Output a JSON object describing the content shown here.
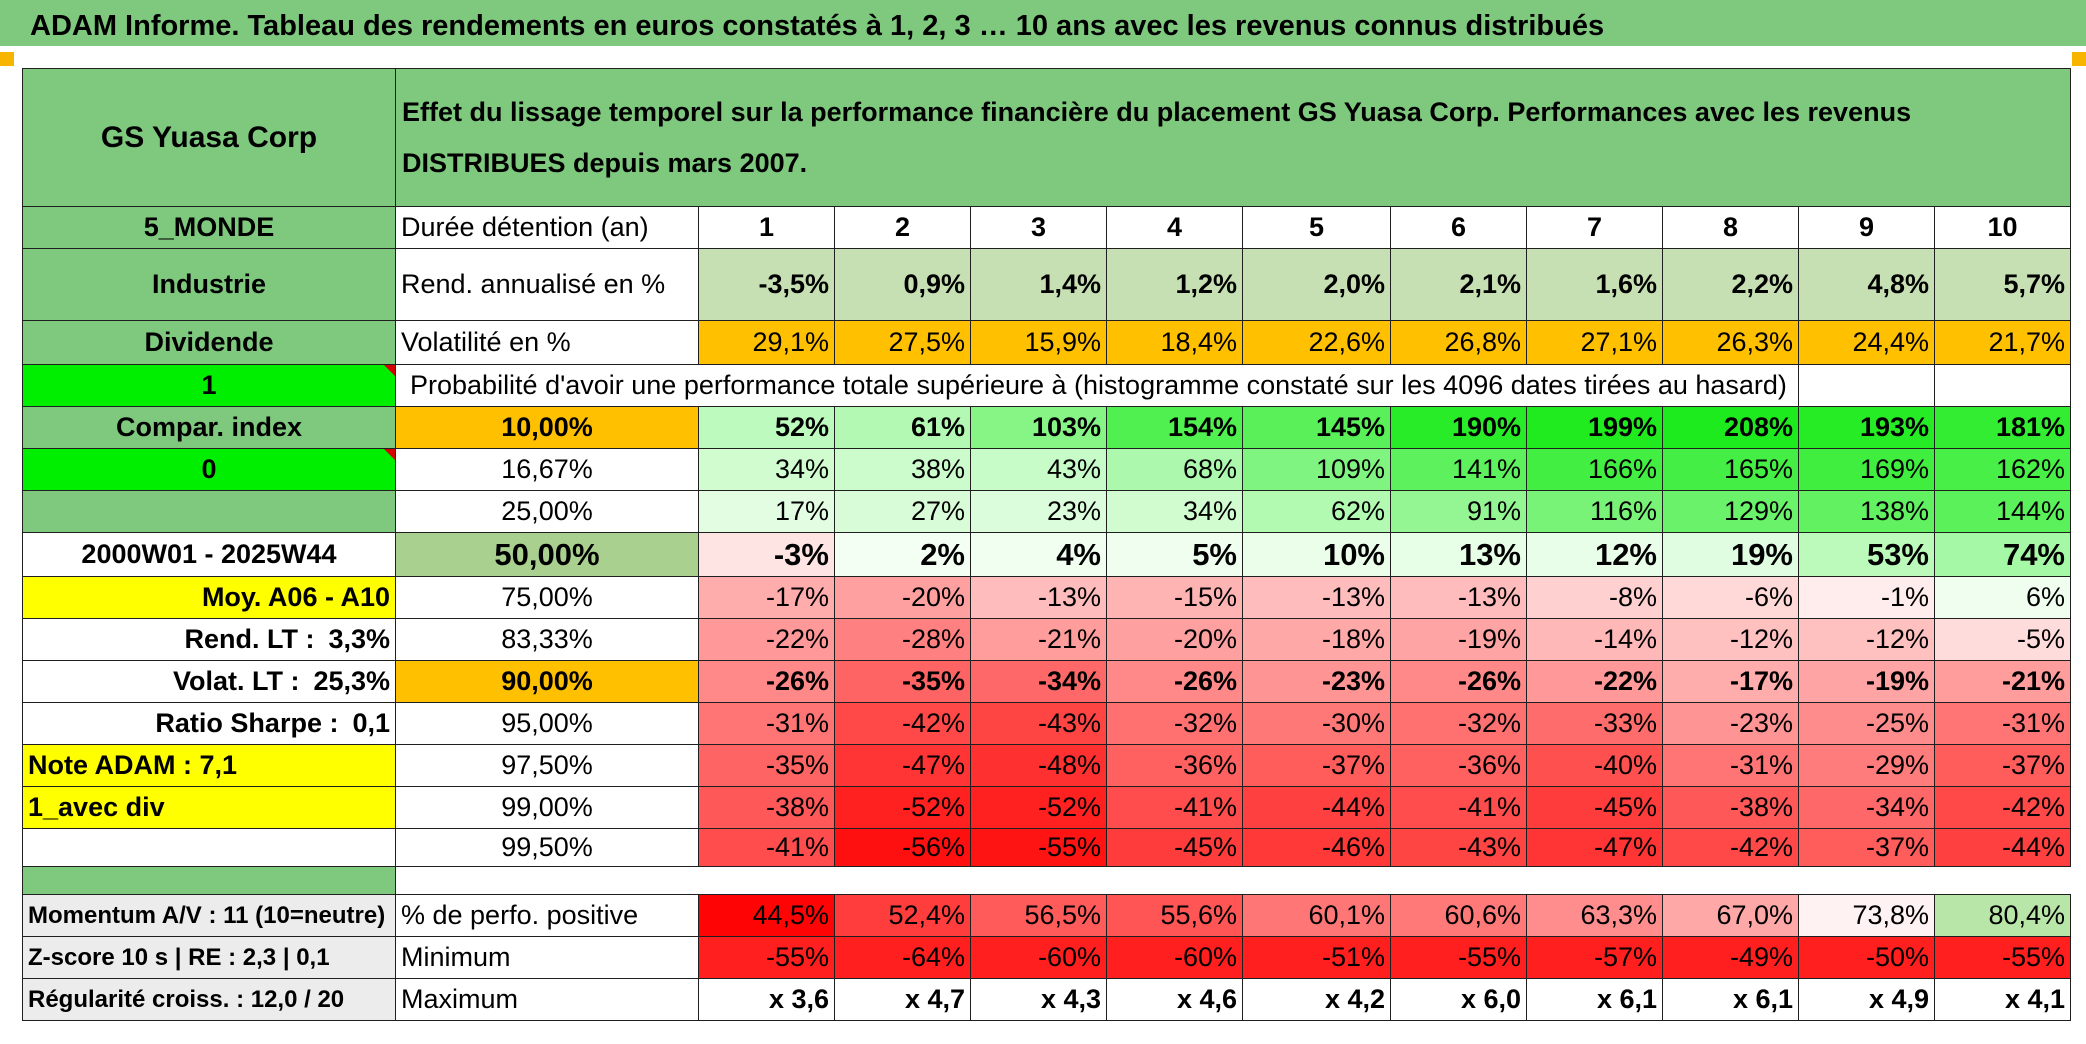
{
  "header": {
    "title": "ADAM Informe. Tableau des rendements en euros constatés à 1, 2, 3 … 10 ans avec les revenus connus distribués"
  },
  "fund": {
    "name": "GS Yuasa Corp",
    "region": "5_MONDE",
    "sector": "Industrie",
    "income_type": "Dividende",
    "flag1": "1",
    "compare_label": "Compar. index",
    "flag2": "0",
    "period": "2000W01 - 2025W44",
    "avg_label": "Moy. A06 - A10",
    "rend_lt_label": "Rend. LT :",
    "rend_lt_value": "3,3%",
    "volat_lt_label": "Volat. LT :",
    "volat_lt_value": "25,3%",
    "sharpe_label": "Ratio Sharpe :",
    "sharpe_value": "0,1",
    "note": "Note ADAM : 7,1",
    "div_mode": "1_avec div"
  },
  "description": "Effet du lissage temporel sur la performance financière du placement GS Yuasa Corp. Performances avec les revenus DISTRIBUES depuis mars 2007.",
  "durations": {
    "label": "Durée détention (an)",
    "values": [
      "1",
      "2",
      "3",
      "4",
      "5",
      "6",
      "7",
      "8",
      "9",
      "10"
    ]
  },
  "annualized": {
    "label": "Rend. annualisé en %",
    "values": [
      "-3,5%",
      "0,9%",
      "1,4%",
      "1,2%",
      "2,0%",
      "2,1%",
      "1,6%",
      "2,2%",
      "4,8%",
      "5,7%"
    ]
  },
  "volatility": {
    "label": "Volatilité en %",
    "values": [
      "29,1%",
      "27,5%",
      "15,9%",
      "18,4%",
      "22,6%",
      "26,8%",
      "27,1%",
      "26,3%",
      "24,4%",
      "21,7%"
    ]
  },
  "probability_caption": "Probabilité d'avoir une performance totale supérieure à (histogramme constaté sur les 4096 dates tirées au hasard)",
  "quantiles": [
    {
      "level": "10,00%",
      "values": [
        "52%",
        "61%",
        "103%",
        "154%",
        "145%",
        "190%",
        "199%",
        "208%",
        "193%",
        "181%"
      ],
      "bold": true
    },
    {
      "level": "16,67%",
      "values": [
        "34%",
        "38%",
        "43%",
        "68%",
        "109%",
        "141%",
        "166%",
        "165%",
        "169%",
        "162%"
      ],
      "bold": false
    },
    {
      "level": "25,00%",
      "values": [
        "17%",
        "27%",
        "23%",
        "34%",
        "62%",
        "91%",
        "116%",
        "129%",
        "138%",
        "144%"
      ],
      "bold": false
    },
    {
      "level": "50,00%",
      "values": [
        "-3%",
        "2%",
        "4%",
        "5%",
        "10%",
        "13%",
        "12%",
        "19%",
        "53%",
        "74%"
      ],
      "bold": true
    },
    {
      "level": "75,00%",
      "values": [
        "-17%",
        "-20%",
        "-13%",
        "-15%",
        "-13%",
        "-13%",
        "-8%",
        "-6%",
        "-1%",
        "6%"
      ],
      "bold": false
    },
    {
      "level": "83,33%",
      "values": [
        "-22%",
        "-28%",
        "-21%",
        "-20%",
        "-18%",
        "-19%",
        "-14%",
        "-12%",
        "-12%",
        "-5%"
      ],
      "bold": false
    },
    {
      "level": "90,00%",
      "values": [
        "-26%",
        "-35%",
        "-34%",
        "-26%",
        "-23%",
        "-26%",
        "-22%",
        "-17%",
        "-19%",
        "-21%"
      ],
      "bold": true
    },
    {
      "level": "95,00%",
      "values": [
        "-31%",
        "-42%",
        "-43%",
        "-32%",
        "-30%",
        "-32%",
        "-33%",
        "-23%",
        "-25%",
        "-31%"
      ],
      "bold": false
    },
    {
      "level": "97,50%",
      "values": [
        "-35%",
        "-47%",
        "-48%",
        "-36%",
        "-37%",
        "-36%",
        "-40%",
        "-31%",
        "-29%",
        "-37%"
      ],
      "bold": false
    },
    {
      "level": "99,00%",
      "values": [
        "-38%",
        "-52%",
        "-52%",
        "-41%",
        "-44%",
        "-41%",
        "-45%",
        "-38%",
        "-34%",
        "-42%"
      ],
      "bold": false
    },
    {
      "level": "99,50%",
      "values": [
        "-41%",
        "-56%",
        "-55%",
        "-45%",
        "-46%",
        "-43%",
        "-47%",
        "-42%",
        "-37%",
        "-44%"
      ],
      "bold": false
    }
  ],
  "stats": {
    "momentum": "Momentum A/V : 11 (10=neutre)",
    "zscore": "Z-score 10 s | RE : 2,3 | 0,1",
    "regularity": "Régularité croiss. : 12,0 / 20",
    "positive_label": "% de perfo. positive",
    "positive_values": [
      "44,5%",
      "52,4%",
      "56,5%",
      "55,6%",
      "60,1%",
      "60,6%",
      "63,3%",
      "67,0%",
      "73,8%",
      "80,4%"
    ],
    "minimum_label": "Minimum",
    "minimum_values": [
      "-55%",
      "-64%",
      "-60%",
      "-60%",
      "-51%",
      "-55%",
      "-57%",
      "-49%",
      "-50%",
      "-55%"
    ],
    "maximum_label": "Maximum",
    "maximum_values": [
      "x 3,6",
      "x 4,7",
      "x 4,3",
      "x 4,6",
      "x 4,2",
      "x 6,0",
      "x 6,1",
      "x 6,1",
      "x 4,9",
      "x 4,1"
    ]
  },
  "colors": {
    "green_header": "#7fc97f",
    "green_bright": "#00ee00",
    "green_light": "#c6e0b4",
    "orange": "#ffc000",
    "yellow": "#ffff00",
    "red_text": "#d41414"
  }
}
